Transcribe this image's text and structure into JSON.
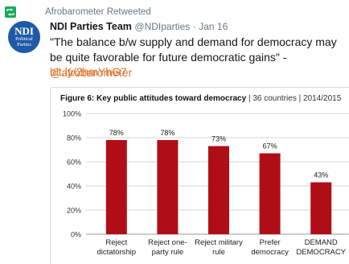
{
  "retweet": {
    "icon": "retweet-icon",
    "text": "Afrobarometer Retweeted"
  },
  "tweet": {
    "avatar": {
      "line1": "NDI",
      "line2": "Political",
      "line3": "Parties"
    },
    "name": "NDI Parties Team",
    "handle": "@NDIparties",
    "separator": "·",
    "date": "Jan 16",
    "text": "\"The balance b/w supply and demand for democracy may be quite favorable for future democratic gains\" -",
    "mention": "@afrobarometer",
    "link": "bit.ly/2hmYhG7"
  },
  "figure": {
    "title_bold": "Figure 6: Key public attitudes toward democracy",
    "separator": "|",
    "countries": "36 countries",
    "years": "2014/2015"
  },
  "colors": {
    "bar": "#b00e16",
    "accent_link": "#e0752d",
    "retweet_green": "#19a95f"
  },
  "chart_data": {
    "type": "bar",
    "categories": [
      [
        "Reject",
        "dictatorship"
      ],
      [
        "Reject one-",
        "party rule"
      ],
      [
        "Reject military",
        "rule"
      ],
      [
        "Prefer",
        "democracy"
      ],
      [
        "DEMAND",
        "DEMOCRACY"
      ]
    ],
    "values": [
      78,
      78,
      73,
      67,
      43
    ],
    "data_labels": [
      "78%",
      "78%",
      "73%",
      "67%",
      "43%"
    ],
    "y_ticks": [
      "0%",
      "20%",
      "40%",
      "60%",
      "80%",
      "100%"
    ],
    "ylim": [
      0,
      100
    ],
    "grid": true
  }
}
